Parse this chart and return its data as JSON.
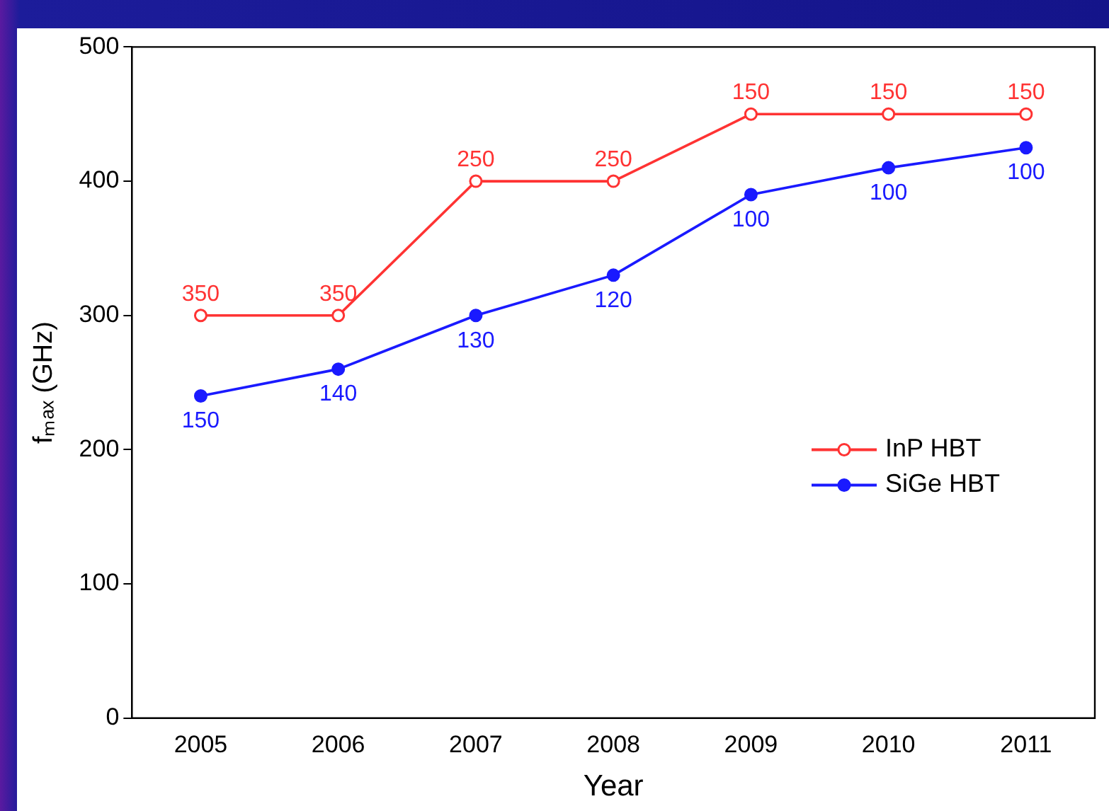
{
  "chart_data": {
    "type": "line",
    "xlabel": "Year",
    "ylabel": "fₘₐₓ (GHz)",
    "categories": [
      "2005",
      "2006",
      "2007",
      "2008",
      "2009",
      "2010",
      "2011"
    ],
    "series": [
      {
        "name": "InP HBT",
        "color": "#ff3333",
        "values": [
          300,
          300,
          400,
          400,
          450,
          450,
          450
        ]
      },
      {
        "name": "SiGe HBT",
        "color": "#1a1aff",
        "values": [
          240,
          260,
          300,
          330,
          390,
          410,
          425
        ]
      }
    ],
    "annotations": [
      {
        "text": "350",
        "x": "2005",
        "y": 300
      },
      {
        "text": "350",
        "x": "2006",
        "y": 300
      },
      {
        "text": "250",
        "x": "2007",
        "y": 400
      },
      {
        "text": "250",
        "x": "2008",
        "y": 400
      },
      {
        "text": "150",
        "x": "2009",
        "y": 450
      },
      {
        "text": "150",
        "x": "2010",
        "y": 450
      },
      {
        "text": "150",
        "x": "2011",
        "y": 450
      },
      {
        "text": "150",
        "x": "2005",
        "y": 240
      },
      {
        "text": "140",
        "x": "2006",
        "y": 260
      },
      {
        "text": "130",
        "x": "2007",
        "y": 300
      },
      {
        "text": "120",
        "x": "2008",
        "y": 330
      },
      {
        "text": "100",
        "x": "2009",
        "y": 390
      },
      {
        "text": "100",
        "x": "2010",
        "y": 410
      },
      {
        "text": "100",
        "x": "2011",
        "y": 425
      }
    ],
    "ylim": [
      0,
      500
    ],
    "yticks": [
      0,
      100,
      200,
      300,
      400,
      500
    ],
    "grid": false,
    "legend": "center right",
    "marker": "circle",
    "line_style": "solid"
  }
}
